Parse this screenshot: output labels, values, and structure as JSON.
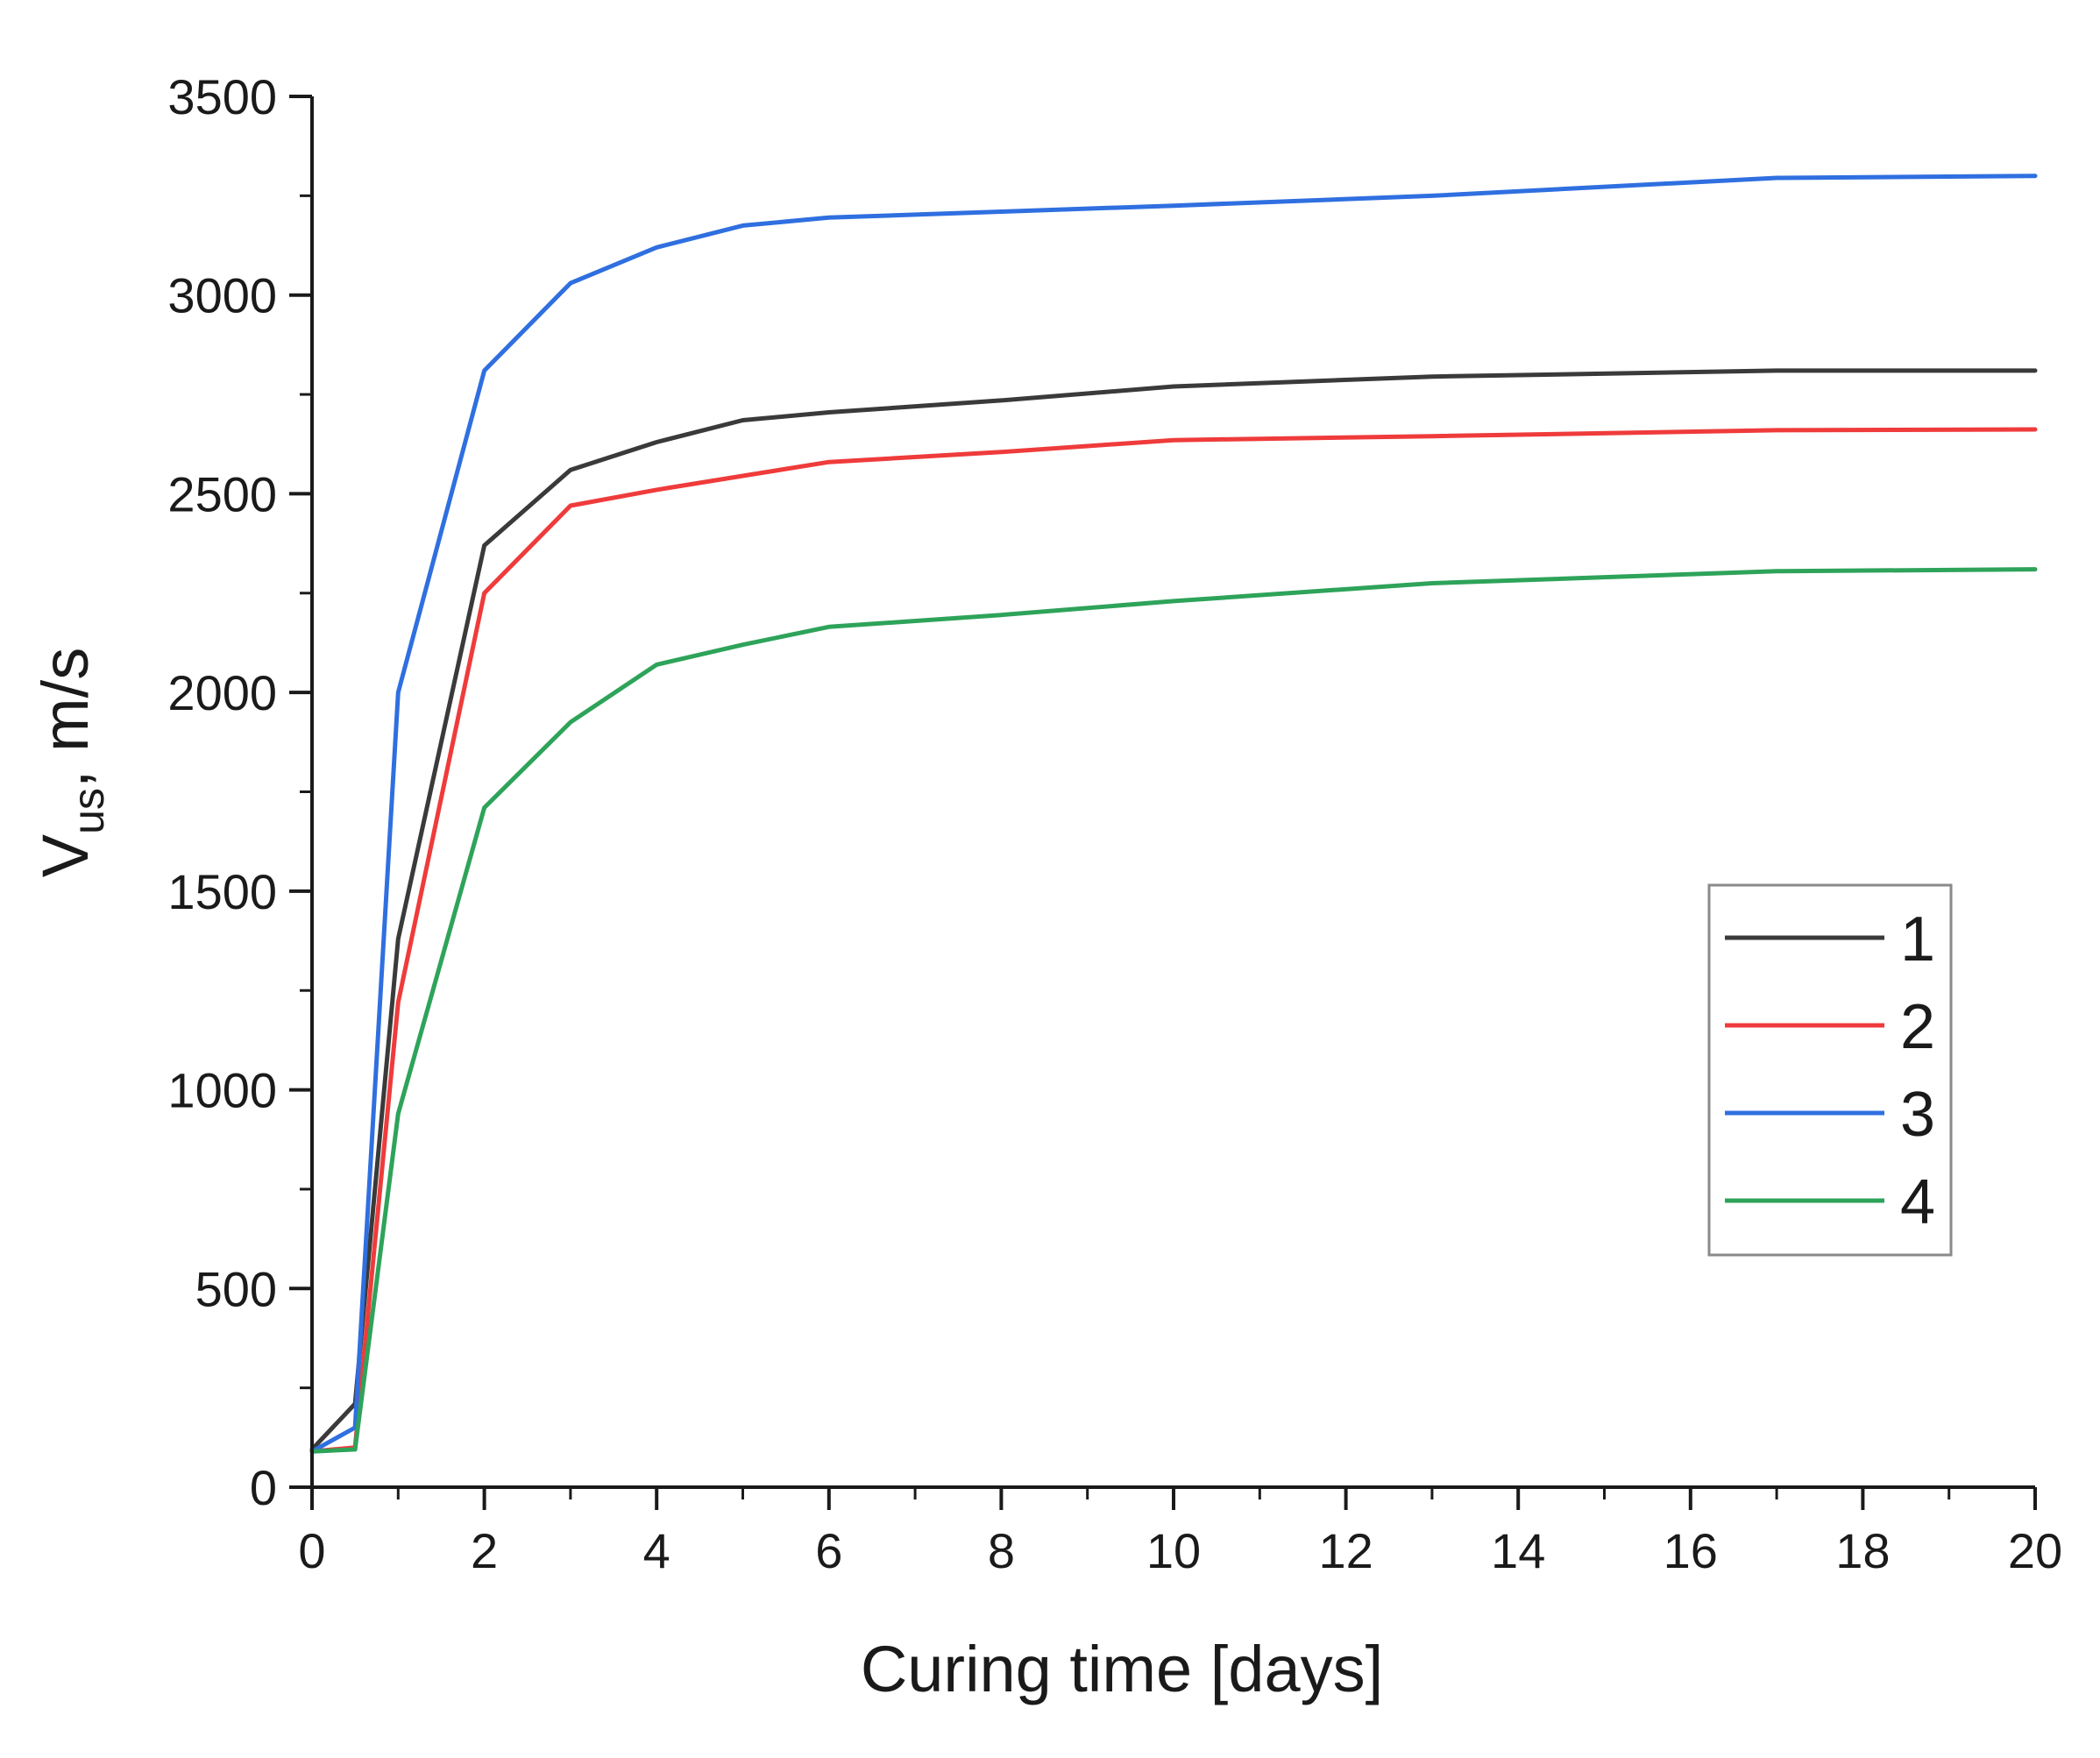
{
  "chart_data": {
    "type": "line",
    "title": "",
    "xlabel": "Curing time [days]",
    "ylabel": {
      "main": "V",
      "subscript": "us",
      "suffix": ", m/s"
    },
    "xlim": [
      0,
      20
    ],
    "ylim": [
      0,
      3500
    ],
    "x_ticks": [
      0,
      2,
      4,
      6,
      8,
      10,
      12,
      14,
      16,
      18,
      20
    ],
    "y_ticks": [
      0,
      500,
      1000,
      1500,
      2000,
      2500,
      3000,
      3500
    ],
    "x_minor_step": 1,
    "y_minor_step": 250,
    "grid": false,
    "legend_position": "right-middle",
    "series": [
      {
        "name": "1",
        "color": "#3a3a3a",
        "points": [
          [
            0,
            95
          ],
          [
            0.5,
            210
          ],
          [
            1,
            1380
          ],
          [
            2,
            2370
          ],
          [
            3,
            2560
          ],
          [
            4,
            2630
          ],
          [
            5,
            2685
          ],
          [
            6,
            2705
          ],
          [
            8,
            2735
          ],
          [
            10,
            2770
          ],
          [
            13,
            2795
          ],
          [
            17,
            2810
          ],
          [
            20,
            2810
          ]
        ]
      },
      {
        "name": "2",
        "color": "#ef3b3b",
        "points": [
          [
            0,
            90
          ],
          [
            0.5,
            100
          ],
          [
            1,
            1220
          ],
          [
            2,
            2250
          ],
          [
            3,
            2470
          ],
          [
            4,
            2510
          ],
          [
            5,
            2545
          ],
          [
            6,
            2580
          ],
          [
            8,
            2605
          ],
          [
            10,
            2635
          ],
          [
            13,
            2645
          ],
          [
            17,
            2660
          ],
          [
            20,
            2662
          ]
        ]
      },
      {
        "name": "3",
        "color": "#2f6fe0",
        "points": [
          [
            0,
            90
          ],
          [
            0.5,
            150
          ],
          [
            1,
            2000
          ],
          [
            2,
            2810
          ],
          [
            3,
            3030
          ],
          [
            4,
            3120
          ],
          [
            5,
            3175
          ],
          [
            6,
            3195
          ],
          [
            8,
            3210
          ],
          [
            10,
            3225
          ],
          [
            13,
            3250
          ],
          [
            17,
            3295
          ],
          [
            20,
            3300
          ]
        ]
      },
      {
        "name": "4",
        "color": "#2ea35a",
        "points": [
          [
            0,
            90
          ],
          [
            0.5,
            95
          ],
          [
            1,
            940
          ],
          [
            2,
            1710
          ],
          [
            3,
            1925
          ],
          [
            4,
            2070
          ],
          [
            5,
            2120
          ],
          [
            6,
            2165
          ],
          [
            8,
            2195
          ],
          [
            10,
            2230
          ],
          [
            13,
            2275
          ],
          [
            17,
            2305
          ],
          [
            20,
            2310
          ]
        ]
      }
    ]
  }
}
